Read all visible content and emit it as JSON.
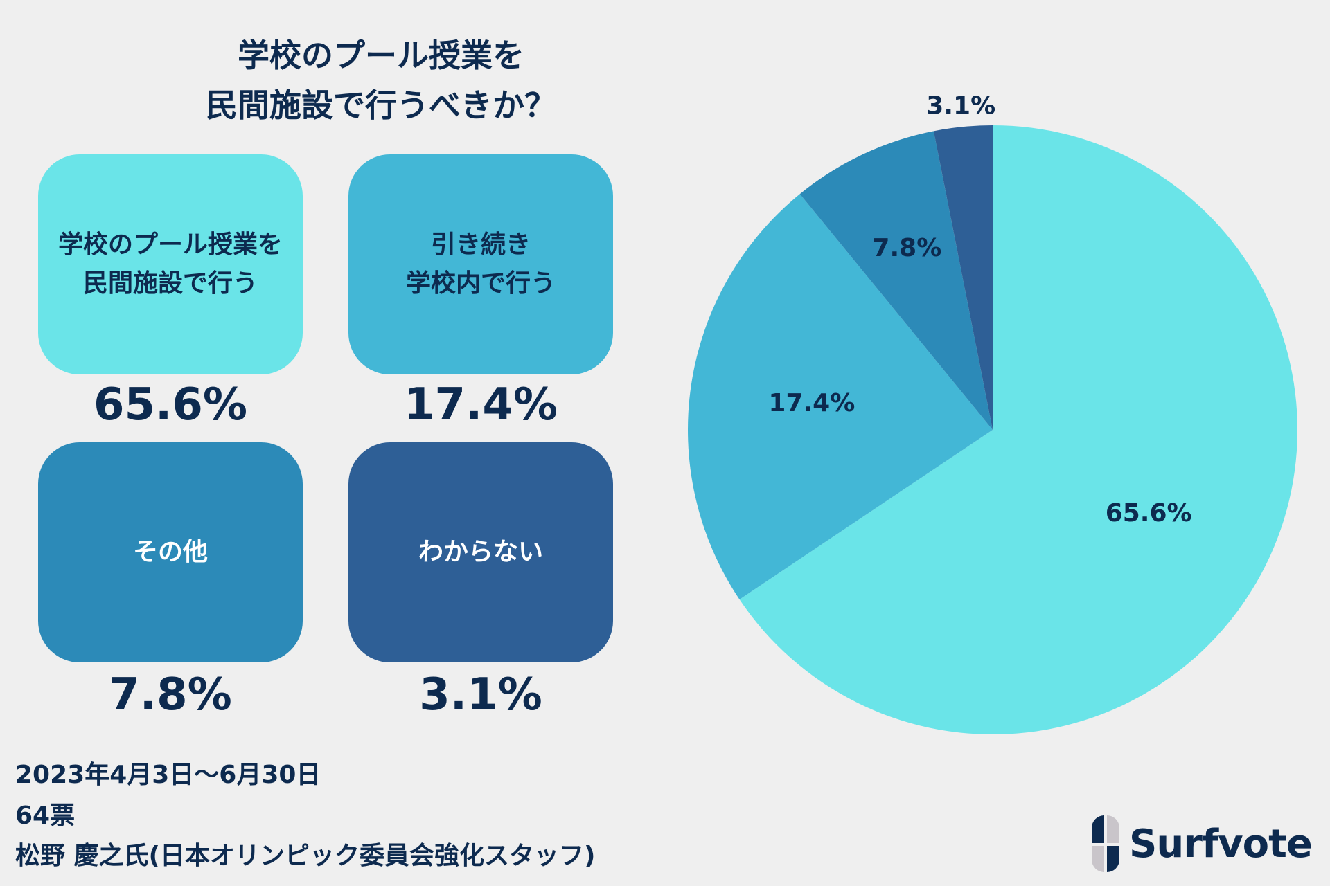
{
  "title_lines": [
    "学校のプール授業を",
    "民間施設で行うべきか？"
  ],
  "colors": {
    "background": "#efefef",
    "text": "#0d2a4f",
    "slices": [
      "#6ae4e8",
      "#43b7d6",
      "#2c8ab8",
      "#2e5f96"
    ]
  },
  "options": [
    {
      "label": "学校のプール授業を\n民間施設で行う",
      "percent": "65.6%",
      "color": "#6ae4e8",
      "text_color": "#0d2a4f"
    },
    {
      "label": "引き続き\n学校内で行う",
      "percent": "17.4%",
      "color": "#43b7d6",
      "text_color": "#0d2a4f"
    },
    {
      "label": "その他",
      "percent": "7.8%",
      "color": "#2c8ab8",
      "text_color": "#ffffff"
    },
    {
      "label": "わからない",
      "percent": "3.1%",
      "color": "#2e5f96",
      "text_color": "#ffffff"
    }
  ],
  "footer": {
    "period": "2023年4月3日〜6月30日",
    "votes": "64票",
    "source": "松野 慶之氏(日本オリンピック委員会強化スタッフ)"
  },
  "logo": {
    "text": "Surfvote"
  },
  "chart_data": {
    "type": "pie",
    "categories": [
      "学校のプール授業を民間施設で行う",
      "引き続き学校内で行う",
      "その他",
      "わからない"
    ],
    "values": [
      65.6,
      17.4,
      7.8,
      3.1
    ],
    "data_labels": [
      "65.6%",
      "17.4%",
      "7.8%",
      "3.1%"
    ],
    "start": "top",
    "direction": "clockwise"
  }
}
